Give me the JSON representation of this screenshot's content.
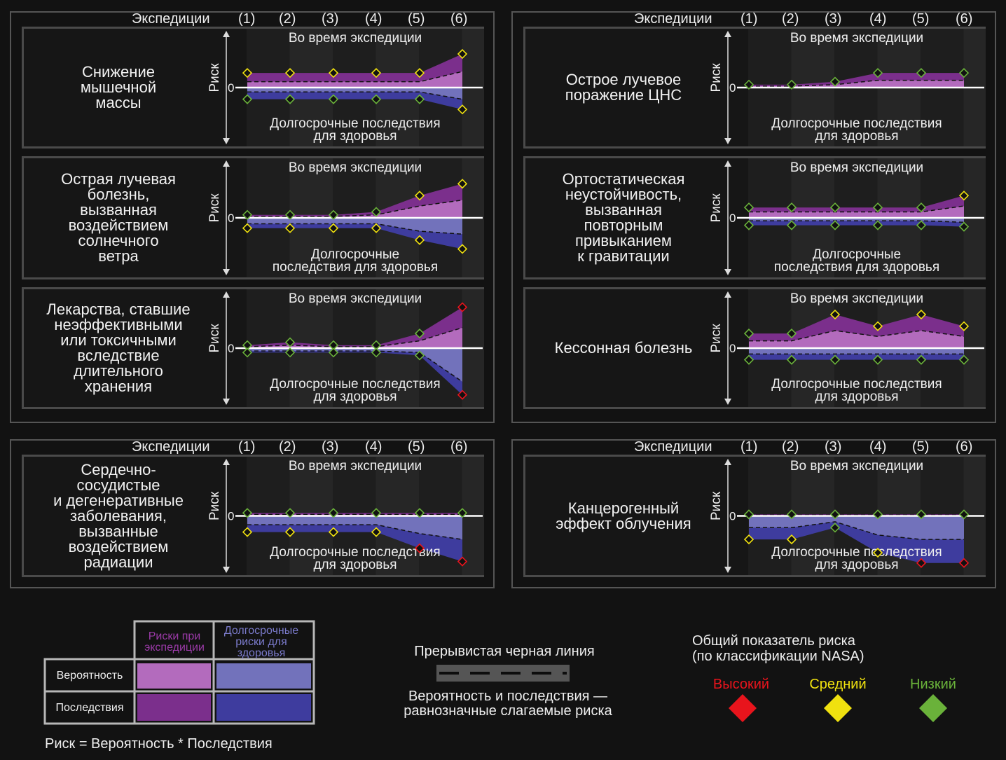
{
  "header": {
    "label": "Экспедиции",
    "missions": [
      "(1)",
      "(2)",
      "(3)",
      "(4)",
      "(5)",
      "(6)"
    ]
  },
  "common": {
    "axis_label": "Риск",
    "zero": "0",
    "top_note": "Во время экспедиции"
  },
  "colors": {
    "background": "#121212",
    "mission_prob": "#b36bbd",
    "mission_cons": "#7b2f8c",
    "health_prob": "#7272bb",
    "health_cons": "#3e3c9e",
    "high": "#e8141c",
    "medium": "#f0e10f",
    "low": "#6ab23a"
  },
  "chart_data": [
    {
      "title": "Снижение\nмышечной\nмассы",
      "bottom_note": "Долгосрочные последствия\nдля здоровья",
      "type": "area",
      "x": [
        "(1)",
        "(2)",
        "(3)",
        "(4)",
        "(5)",
        "(6)"
      ],
      "ylim": [
        -3.5,
        3.5
      ],
      "mission_outer": [
        1,
        1,
        1,
        1,
        1,
        2.3
      ],
      "mission_inner": [
        0.4,
        0.4,
        0.4,
        0.4,
        0.4,
        1.1
      ],
      "health_inner": [
        -0.3,
        -0.3,
        -0.3,
        -0.3,
        -0.3,
        -0.8
      ],
      "health_outer": [
        -0.8,
        -0.8,
        -0.8,
        -0.8,
        -0.8,
        -1.5
      ],
      "mission_markers": [
        "medium",
        "medium",
        "medium",
        "medium",
        "medium",
        "medium"
      ],
      "health_markers": [
        "low",
        "low",
        "low",
        "low",
        "low",
        "medium"
      ]
    },
    {
      "title": "Острое лучевое\nпоражение ЦНС",
      "bottom_note": "Долгосрочные последствия\nдля здоровья",
      "type": "area",
      "x": [
        "(1)",
        "(2)",
        "(3)",
        "(4)",
        "(5)",
        "(6)"
      ],
      "ylim": [
        -3.5,
        3.5
      ],
      "mission_outer": [
        0.2,
        0.2,
        0.4,
        1,
        1,
        1
      ],
      "mission_inner": [
        0.1,
        0.1,
        0.2,
        0.5,
        0.5,
        0.5
      ],
      "health_inner": [],
      "health_outer": [],
      "mission_markers": [
        "low",
        "low",
        "low",
        "low",
        "low",
        "low"
      ],
      "health_markers": []
    },
    {
      "title": "Острая лучевая\nболезнь,\nвызванная\nвоздействием\nсолнечного\nветра",
      "bottom_note": "Долгосрочные\nпоследствия для здоровья",
      "type": "area",
      "x": [
        "(1)",
        "(2)",
        "(3)",
        "(4)",
        "(5)",
        "(6)"
      ],
      "ylim": [
        -3.5,
        3.5
      ],
      "mission_outer": [
        0.2,
        0.2,
        0.2,
        0.4,
        1.5,
        2.3
      ],
      "mission_inner": [
        0.1,
        0.1,
        0.1,
        0.2,
        0.8,
        1.2
      ],
      "health_inner": [
        -0.4,
        -0.4,
        -0.4,
        -0.4,
        -0.9,
        -1.1
      ],
      "health_outer": [
        -0.7,
        -0.7,
        -0.7,
        -0.7,
        -1.5,
        -2.1
      ],
      "mission_markers": [
        "low",
        "low",
        "low",
        "low",
        "medium",
        "medium"
      ],
      "health_markers": [
        "medium",
        "medium",
        "medium",
        "medium",
        "medium",
        "medium"
      ]
    },
    {
      "title": "Ортостатическая\nнеустойчивость,\nвызванная\nповторным\nпривыканием\nк гравитации",
      "bottom_note": "Долгосрочные\nпоследствия для здоровья",
      "type": "area",
      "x": [
        "(1)",
        "(2)",
        "(3)",
        "(4)",
        "(5)",
        "(6)"
      ],
      "ylim": [
        -3.5,
        3.5
      ],
      "mission_outer": [
        0.7,
        0.7,
        0.7,
        0.7,
        0.7,
        1.5
      ],
      "mission_inner": [
        0.4,
        0.4,
        0.4,
        0.4,
        0.4,
        0.8
      ],
      "health_inner": [
        -0.2,
        -0.2,
        -0.2,
        -0.2,
        -0.2,
        -0.3
      ],
      "health_outer": [
        -0.5,
        -0.5,
        -0.5,
        -0.5,
        -0.5,
        -0.6
      ],
      "mission_markers": [
        "low",
        "low",
        "low",
        "low",
        "low",
        "medium"
      ],
      "health_markers": [
        "low",
        "low",
        "low",
        "low",
        "low",
        "low"
      ]
    },
    {
      "title": "Лекарства, ставшие\nнеэффективными\nили токсичными\nвследствие\nдлительного\nхранения",
      "bottom_note": "Долгосрочные последствия\nдля здоровья",
      "type": "area",
      "x": [
        "(1)",
        "(2)",
        "(3)",
        "(4)",
        "(5)",
        "(6)"
      ],
      "ylim": [
        -3.5,
        3.5
      ],
      "mission_outer": [
        0.2,
        0.4,
        0.2,
        0.2,
        1,
        2.8
      ],
      "mission_inner": [
        0.1,
        0.2,
        0.1,
        0.1,
        0.5,
        1.4
      ],
      "health_inner": [
        -0.2,
        -0.2,
        -0.2,
        -0.2,
        -0.3,
        -2.3
      ],
      "health_outer": [
        -0.3,
        -0.3,
        -0.3,
        -0.3,
        -0.5,
        -3.2
      ],
      "mission_markers": [
        "low",
        "low",
        "low",
        "low",
        "low",
        "high"
      ],
      "health_markers": [
        "low",
        "low",
        "low",
        "low",
        "low",
        "high"
      ]
    },
    {
      "title": "Кессонная болезнь",
      "bottom_note": "Долгосрочные последствия\nдля здоровья",
      "type": "area",
      "x": [
        "(1)",
        "(2)",
        "(3)",
        "(4)",
        "(5)",
        "(6)"
      ],
      "ylim": [
        -3.5,
        3.5
      ],
      "mission_outer": [
        1,
        1,
        2.3,
        1.5,
        2.3,
        1.5
      ],
      "mission_inner": [
        0.5,
        0.5,
        1.2,
        0.8,
        1.2,
        0.8
      ],
      "health_inner": [
        -0.4,
        -0.4,
        -0.4,
        -0.4,
        -0.4,
        -0.4
      ],
      "health_outer": [
        -0.8,
        -0.8,
        -0.8,
        -0.8,
        -0.8,
        -0.8
      ],
      "mission_markers": [
        "low",
        "low",
        "medium",
        "medium",
        "medium",
        "medium"
      ],
      "health_markers": [
        "low",
        "low",
        "low",
        "low",
        "low",
        "low"
      ]
    },
    {
      "title": "Сердечно-\nсосудистые\nи дегенеративные\nзаболевания,\nвызванные\nвоздействием\nрадиации",
      "bottom_note": "Долгосрочные последствия\nдля здоровья",
      "type": "area",
      "x": [
        "(1)",
        "(2)",
        "(3)",
        "(4)",
        "(5)",
        "(6)"
      ],
      "ylim": [
        -3.5,
        3.5
      ],
      "mission_outer": [
        0.2,
        0.2,
        0.2,
        0.2,
        0.2,
        0.2
      ],
      "mission_inner": [
        0.1,
        0.1,
        0.1,
        0.1,
        0.1,
        0.1
      ],
      "health_inner": [
        -0.6,
        -0.6,
        -0.6,
        -0.6,
        -1.2,
        -1.6
      ],
      "health_outer": [
        -1.1,
        -1.1,
        -1.1,
        -1.1,
        -2.2,
        -3.1
      ],
      "mission_markers": [
        "low",
        "low",
        "low",
        "low",
        "low",
        "low"
      ],
      "health_markers": [
        "medium",
        "medium",
        "medium",
        "medium",
        "high",
        "high"
      ]
    },
    {
      "title": "Канцерогенный\nэффект облучения",
      "bottom_note": "Долгосрочные последствия\nдля здоровья",
      "type": "area",
      "x": [
        "(1)",
        "(2)",
        "(3)",
        "(4)",
        "(5)",
        "(6)"
      ],
      "ylim": [
        -3.5,
        3.5
      ],
      "mission_outer": [
        0.1,
        0.1,
        0.1,
        0.1,
        0.1,
        0.1
      ],
      "mission_inner": [
        0.05,
        0.05,
        0.05,
        0.05,
        0.05,
        0.05
      ],
      "health_inner": [
        -0.8,
        -0.8,
        -0.4,
        -1.3,
        -1.6,
        -1.6
      ],
      "health_outer": [
        -1.6,
        -1.6,
        -0.8,
        -2.5,
        -3.2,
        -3.2
      ],
      "mission_markers": [
        "low",
        "low",
        "low",
        "low",
        "low",
        "low"
      ],
      "health_markers": [
        "medium",
        "medium",
        "low",
        "medium",
        "high",
        "high"
      ]
    }
  ],
  "legend": {
    "col_mission": "Риски при\nэкспедиции",
    "col_health": "Долгосрочные\nриски для\nздоровья",
    "row_prob": "Вероятность",
    "row_cons": "Последствия",
    "formula": "Риск = Вероятность * Последствия",
    "dash_title": "Прерывистая черная линия",
    "dash_desc": "Вероятность и последствия —\nравнозначные слагаемые риска",
    "overall_title": "Общий показатель риска\n(по классификации NASA)",
    "high": "Высокий",
    "medium": "Средний",
    "low": "Низкий"
  }
}
